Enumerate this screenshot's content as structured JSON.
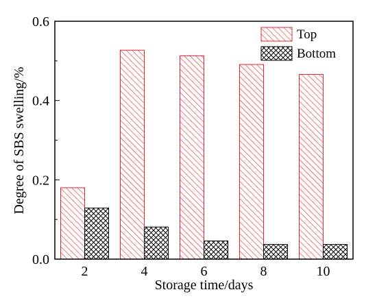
{
  "chart_data": {
    "type": "bar",
    "categories": [
      "2",
      "4",
      "6",
      "8",
      "10"
    ],
    "series": [
      {
        "name": "Top",
        "values": [
          0.18,
          0.527,
          0.513,
          0.491,
          0.466
        ],
        "color": "#e8242b",
        "pattern": "diagonal-hatch"
      },
      {
        "name": "Bottom",
        "values": [
          0.129,
          0.081,
          0.046,
          0.037,
          0.037
        ],
        "color": "#000000",
        "pattern": "crosshatch"
      }
    ],
    "xlabel": "Storage time/days",
    "ylabel": "Degree of SBS swelling/%",
    "ylim": [
      0,
      0.6
    ],
    "yticks": [
      "0.0",
      "0.2",
      "0.4",
      "0.6"
    ],
    "yticks_values": [
      0,
      0.2,
      0.4,
      0.6
    ],
    "legend_position": "top-right",
    "grid": false
  }
}
